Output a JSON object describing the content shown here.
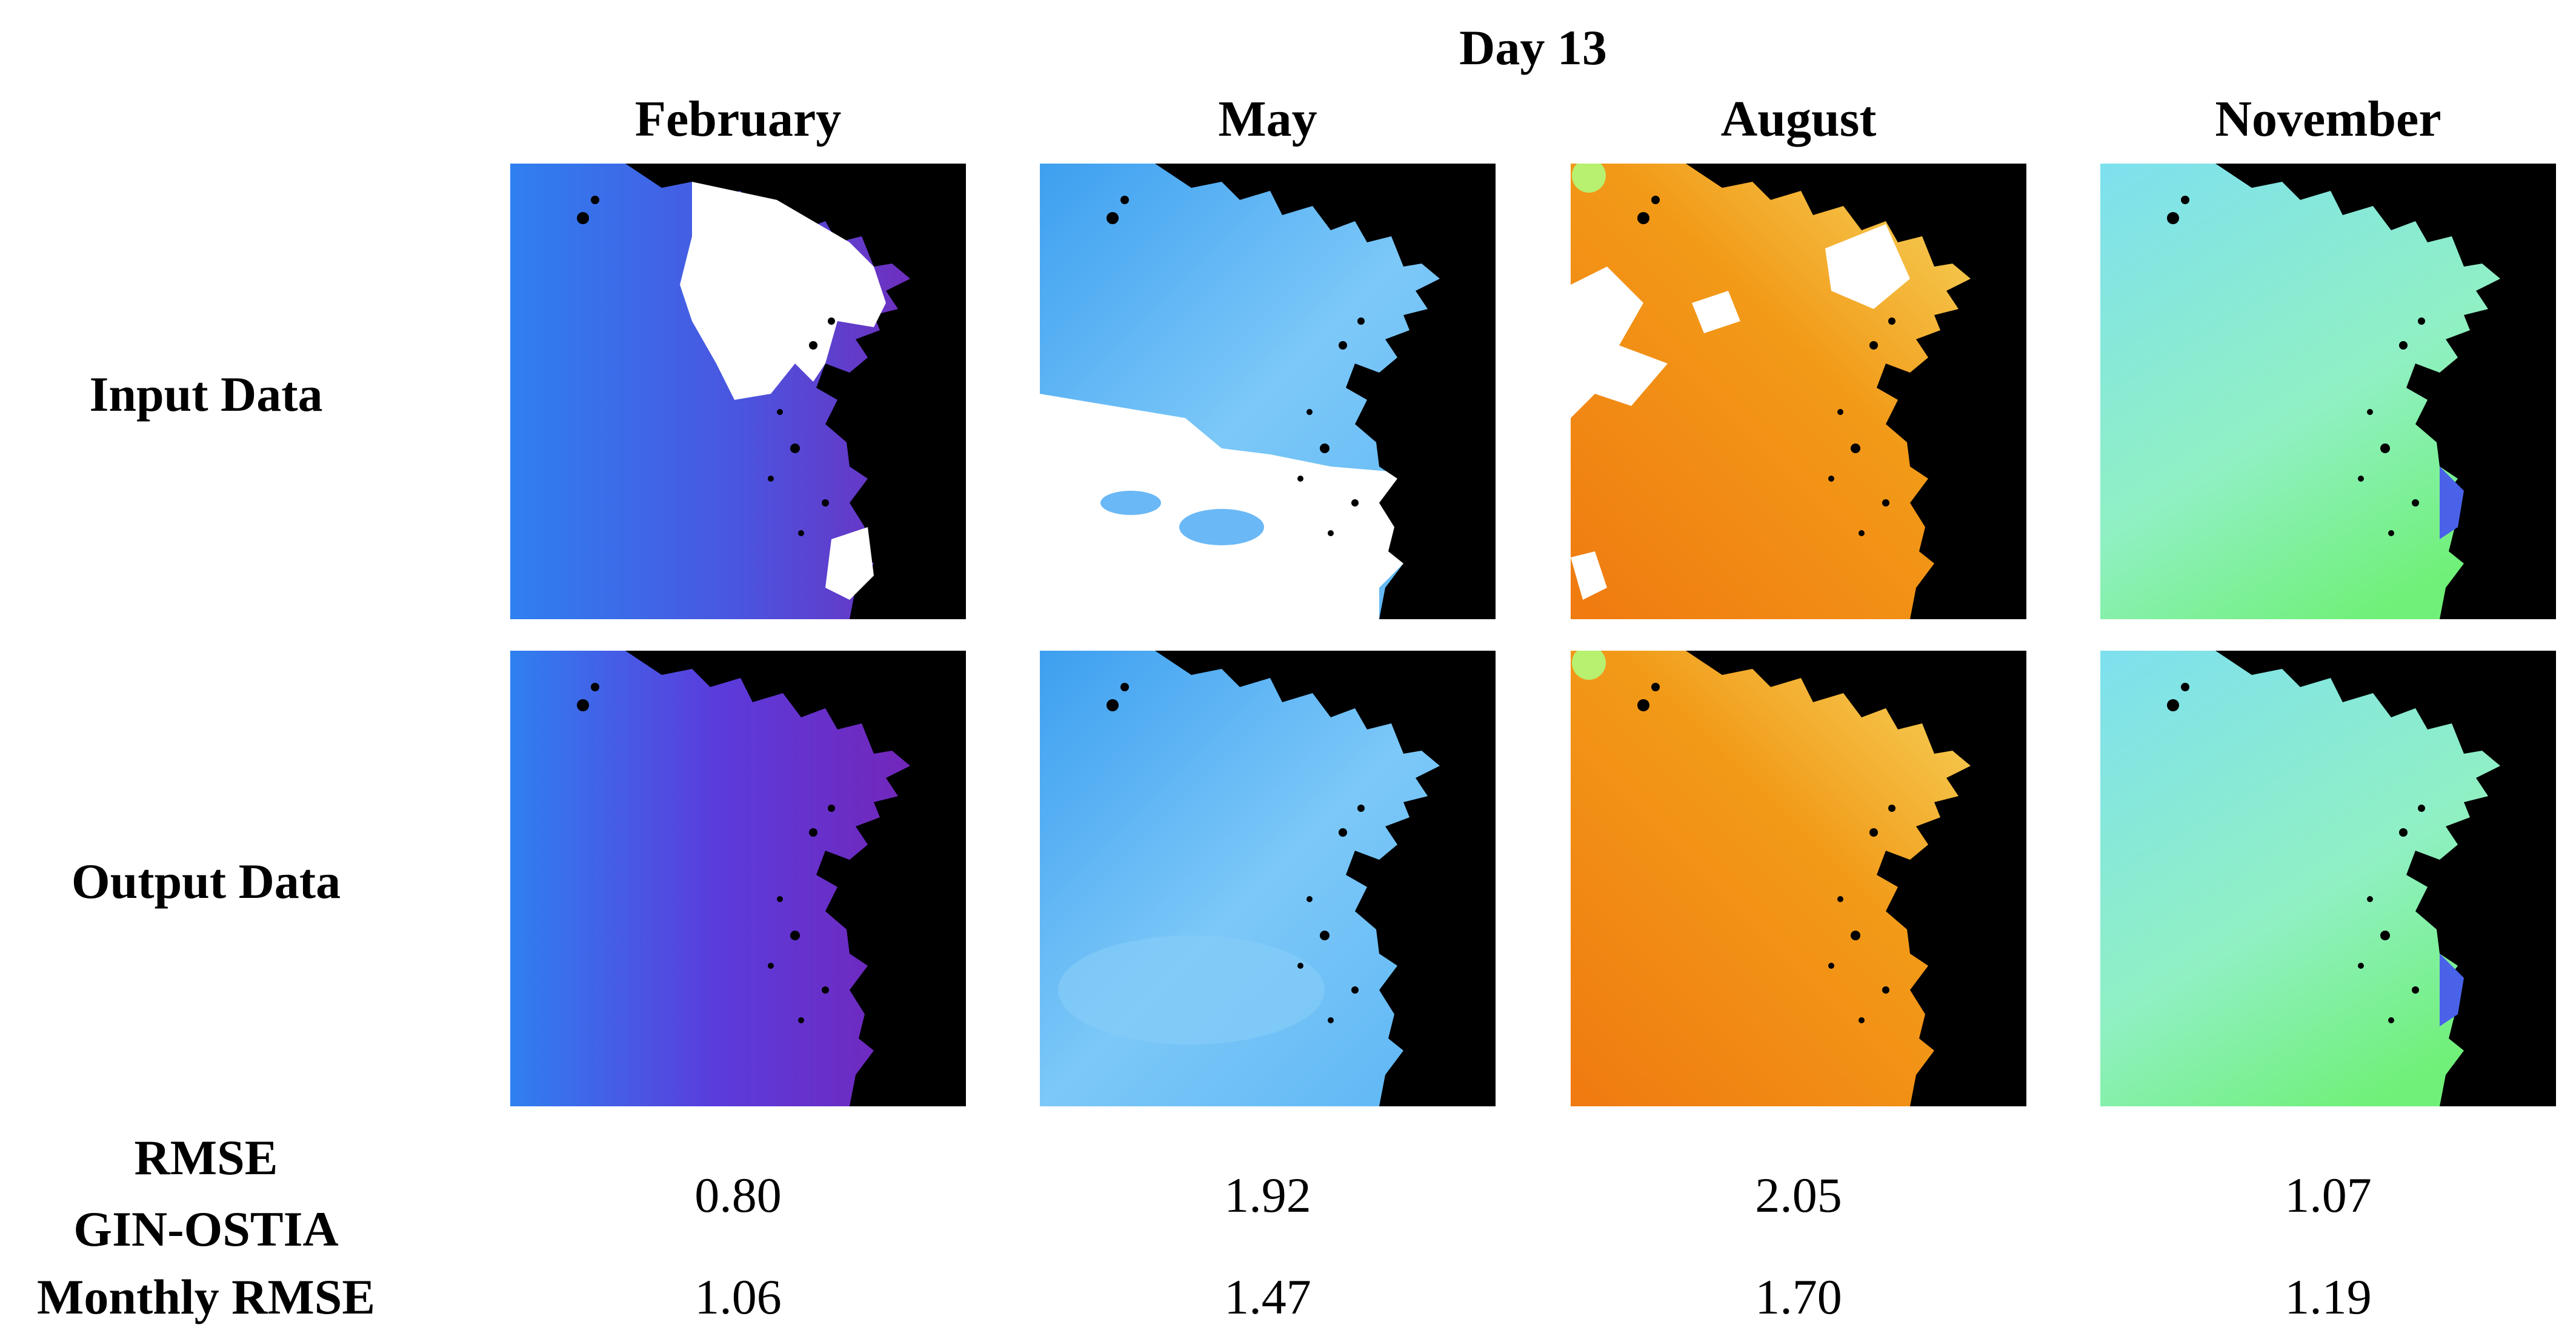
{
  "figure": {
    "title": "Day 13",
    "months": [
      "February",
      "May",
      "August",
      "November"
    ],
    "row_labels": {
      "input": "Input Data",
      "output": "Output Data"
    },
    "metric_labels": {
      "line1": "RMSE",
      "line2": "GIN-OSTIA",
      "line3": "Monthly RMSE"
    },
    "rmse_gin_ostia": [
      "0.80",
      "1.92",
      "2.05",
      "1.07"
    ],
    "monthly_rmse": [
      "1.06",
      "1.47",
      "1.70",
      "1.19"
    ],
    "colors": {
      "land": "#000000",
      "missing_cloud": "#ffffff",
      "february": [
        "#2f7df0",
        "#5a3cdc",
        "#7a22b4"
      ],
      "may": [
        "#3da6f0",
        "#7cc8f8",
        "#a8dcfc"
      ],
      "august": [
        "#f57e10",
        "#f0a418",
        "#f6e06a"
      ],
      "november": [
        "#7ee6e8",
        "#90f0c4",
        "#6cf07a"
      ]
    }
  }
}
